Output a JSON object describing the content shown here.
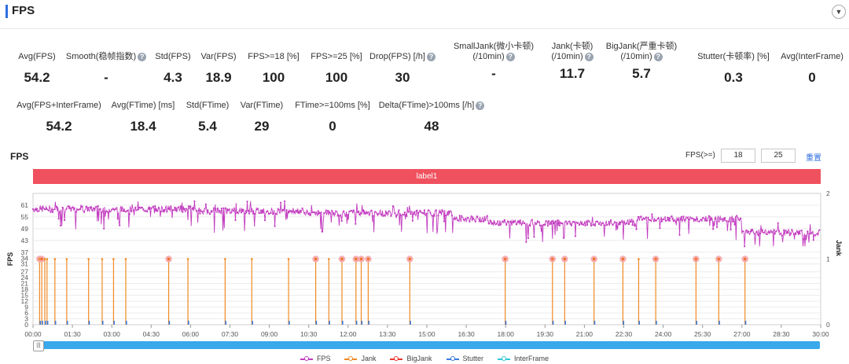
{
  "header": {
    "title": "FPS",
    "collapse_icon": "chevron-down-icon"
  },
  "metrics_row1": [
    {
      "label": "Avg(FPS)",
      "value": "54.2",
      "help": false
    },
    {
      "label": "Smooth(稳帧指数)",
      "value": "-",
      "help": true
    },
    {
      "label": "Std(FPS)",
      "value": "4.3",
      "help": false
    },
    {
      "label": "Var(FPS)",
      "value": "18.9",
      "help": false
    },
    {
      "label": "FPS>=18 [%]",
      "value": "100",
      "help": false
    },
    {
      "label": "FPS>=25 [%]",
      "value": "100",
      "help": false
    },
    {
      "label": "Drop(FPS) [/h]",
      "value": "30",
      "help": true
    },
    {
      "label": "SmallJank(微小卡顿)",
      "label2": "(/10min)",
      "value": "-",
      "help": true
    },
    {
      "label": "Jank(卡顿)",
      "label2": "(/10min)",
      "value": "11.7",
      "help": true
    },
    {
      "label": "BigJank(严重卡顿)",
      "label2": "(/10min)",
      "value": "5.7",
      "help": true
    },
    {
      "label": "Stutter(卡顿率) [%]",
      "value": "0.3",
      "help": false
    },
    {
      "label": "Avg(InterFrame)",
      "value": "0",
      "help": false
    }
  ],
  "metrics_row2": [
    {
      "label": "Avg(FPS+InterFrame)",
      "value": "54.2",
      "help": false
    },
    {
      "label": "Avg(FTime) [ms]",
      "value": "18.4",
      "help": false
    },
    {
      "label": "Std(FTime)",
      "value": "5.4",
      "help": false
    },
    {
      "label": "Var(FTime)",
      "value": "29",
      "help": false
    },
    {
      "label": "FTime>=100ms [%]",
      "value": "0",
      "help": false
    },
    {
      "label": "Delta(FTime)>100ms [/h]",
      "value": "48",
      "help": true
    }
  ],
  "chart_section": {
    "title": "FPS",
    "threshold_label": "FPS(>=)",
    "threshold1": "18",
    "threshold2": "25",
    "reset_label": "重置",
    "band_label": "label1"
  },
  "chart_data": {
    "type": "line",
    "ylabel_left": "FPS",
    "ylabel_right": "Jank",
    "y_ticks_left": [
      0,
      3,
      6,
      9,
      12,
      15,
      18,
      21,
      24,
      27,
      31,
      34,
      37,
      43,
      49,
      55,
      61
    ],
    "y_ticks_right": [
      0,
      1,
      2
    ],
    "ylim_left": [
      0,
      67
    ],
    "ylim_right": [
      0,
      2
    ],
    "x_tick_labels": [
      "00:00",
      "01:30",
      "03:00",
      "04:30",
      "06:00",
      "07:30",
      "09:00",
      "10:30",
      "12:00",
      "13:30",
      "15:00",
      "16:30",
      "18:00",
      "19:30",
      "21:00",
      "22:30",
      "24:00",
      "25:30",
      "27:00",
      "28:30",
      "30:00"
    ],
    "x_range_seconds": [
      0,
      1800
    ],
    "series": [
      {
        "name": "FPS",
        "color": "#c23bbf",
        "segments": [
          {
            "t": [
              0,
              380
            ],
            "level": 59
          },
          {
            "t": [
              380,
              620
            ],
            "level": 58
          },
          {
            "t": [
              620,
              960
            ],
            "level": 57
          },
          {
            "t": [
              960,
              1040
            ],
            "level": 54
          },
          {
            "t": [
              1040,
              1380
            ],
            "level": 52
          },
          {
            "t": [
              1380,
              1620
            ],
            "level": 54
          },
          {
            "t": [
              1620,
              1800
            ],
            "level": 47
          }
        ]
      },
      {
        "name": "Jank",
        "color": "#f08a24",
        "events_seconds": [
          15,
          20,
          27,
          32,
          50,
          77,
          127,
          158,
          184,
          212,
          310,
          354,
          439,
          500,
          584,
          646,
          676,
          706,
          738,
          750,
          766,
          861,
          1079,
          1187,
          1215,
          1282,
          1348,
          1384,
          1423,
          1515,
          1567,
          1627
        ],
        "value": 1
      },
      {
        "name": "BigJank",
        "color": "#e8372f",
        "events_seconds": [
          15,
          20,
          310,
          646,
          706,
          738,
          750,
          766,
          861,
          1079,
          1187,
          1215,
          1282,
          1348,
          1423,
          1515,
          1567,
          1627
        ],
        "value": 1
      },
      {
        "name": "Stutter",
        "color": "#3b7be0"
      },
      {
        "name": "InterFrame",
        "color": "#2ec7d6"
      }
    ],
    "legend": [
      "FPS",
      "Jank",
      "BigJank",
      "Stutter",
      "InterFrame"
    ],
    "legend_position": "bottom",
    "grid": true
  }
}
